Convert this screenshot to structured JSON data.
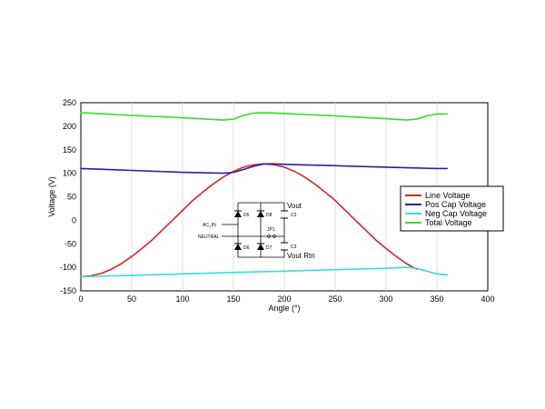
{
  "chart_data": {
    "type": "line",
    "xlabel": "Angle (°)",
    "ylabel": "Voltage (V)",
    "xlim": [
      0,
      400
    ],
    "ylim": [
      -150,
      250
    ],
    "xticks": [
      0,
      50,
      100,
      150,
      200,
      250,
      300,
      350,
      400
    ],
    "yticks": [
      250,
      200,
      150,
      100,
      50,
      0,
      -50,
      -100,
      -150
    ],
    "grid": "vertical",
    "legend_position": "right",
    "series": [
      {
        "name": "Line Voltage",
        "color": "#dd2222",
        "x": [
          0,
          10,
          20,
          30,
          40,
          50,
          60,
          70,
          80,
          90,
          100,
          110,
          120,
          130,
          140,
          150,
          160,
          170,
          180,
          190,
          200,
          210,
          220,
          230,
          240,
          250,
          260,
          270,
          280,
          290,
          300,
          310,
          320,
          330
        ],
        "y": [
          -120,
          -118,
          -113,
          -104,
          -92,
          -77,
          -60,
          -42,
          -21,
          0,
          21,
          42,
          60,
          77,
          92,
          104,
          113,
          118,
          120,
          118,
          113,
          104,
          92,
          77,
          60,
          42,
          21,
          0,
          -21,
          -42,
          -60,
          -77,
          -92,
          -104
        ]
      },
      {
        "name": "Pos Cap Voltage",
        "color": "#1f23a8",
        "x": [
          0,
          50,
          100,
          140,
          150,
          160,
          170,
          180,
          190,
          200,
          250,
          300,
          350,
          360
        ],
        "y": [
          110,
          106,
          102,
          100,
          102,
          108,
          115,
          120,
          120,
          119,
          116,
          113,
          110,
          110
        ]
      },
      {
        "name": "Neg Cap Voltage",
        "color": "#33dddd",
        "x": [
          0,
          50,
          100,
          150,
          200,
          250,
          300,
          320,
          330,
          340,
          350,
          360
        ],
        "y": [
          -120,
          -117,
          -114,
          -111,
          -108,
          -105,
          -102,
          -100,
          -102,
          -108,
          -114,
          -116
        ]
      },
      {
        "name": "Total Voltage",
        "color": "#33dd22",
        "x": [
          0,
          50,
          100,
          140,
          150,
          160,
          170,
          180,
          190,
          200,
          250,
          300,
          320,
          330,
          340,
          350,
          360
        ],
        "y": [
          229,
          223,
          218,
          213,
          215,
          223,
          228,
          229,
          228,
          227,
          222,
          216,
          213,
          215,
          222,
          226,
          226
        ]
      }
    ],
    "schematic": {
      "labels": {
        "vout": "Vout",
        "vout_rtn": "Vout Rtn",
        "ac_in": "AC_IN",
        "neutral": "NEUTRAL",
        "d5": "D5",
        "d8": "D8",
        "d6": "D6",
        "d7": "D7",
        "c2": "C2",
        "c3": "C3",
        "jp1": "JP1"
      }
    }
  }
}
